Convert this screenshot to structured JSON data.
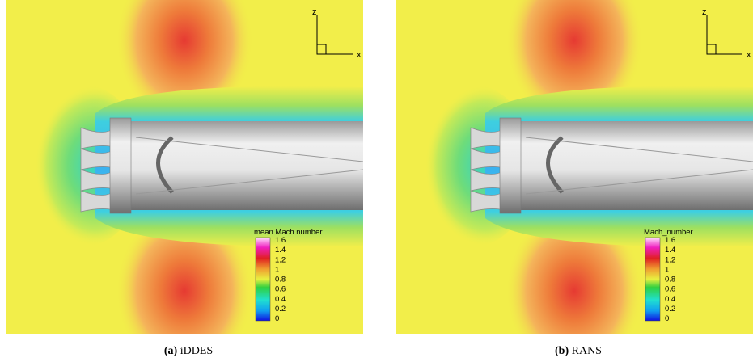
{
  "panels": [
    {
      "axis_z": "z",
      "axis_x": "x",
      "legend_title": "mean Mach number",
      "legend_ticks": [
        1.6,
        1.4,
        1.2,
        1,
        0.8,
        0.6,
        0.4,
        0.2,
        0
      ],
      "caption_label": "(a)",
      "caption_text": "iDDES"
    },
    {
      "axis_z": "z",
      "axis_x": "x",
      "legend_title": "Mach_number",
      "legend_ticks": [
        1.6,
        1.4,
        1.2,
        1,
        0.8,
        0.6,
        0.4,
        0.2,
        0
      ],
      "caption_label": "(b)",
      "caption_text": "RANS"
    }
  ]
}
